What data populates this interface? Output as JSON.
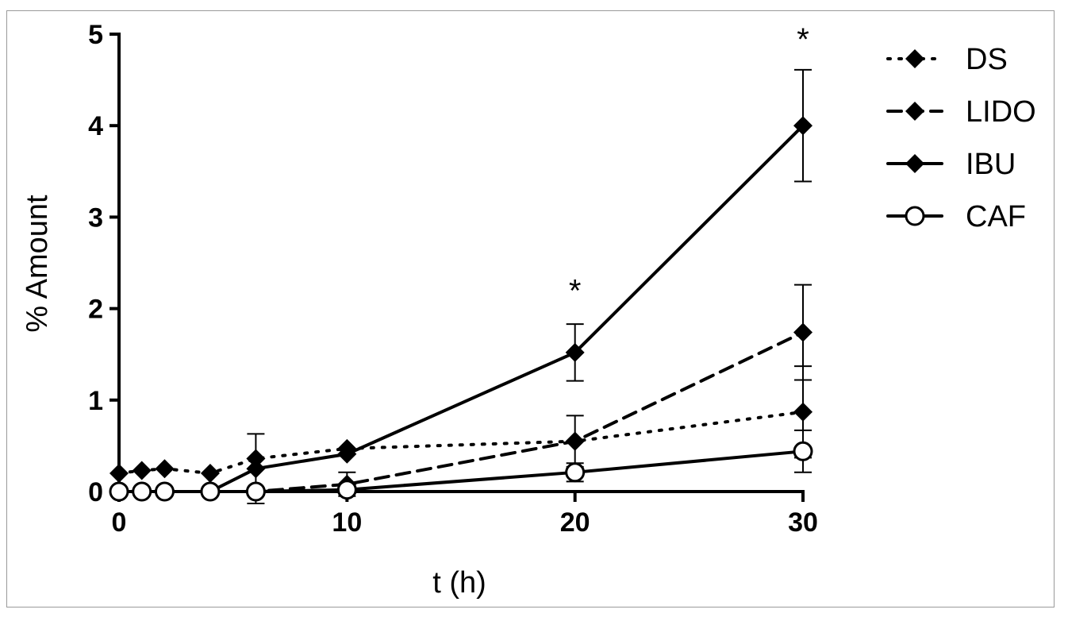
{
  "chart_data": {
    "type": "line",
    "xlabel": "t (h)",
    "ylabel": "% Amount",
    "xlim": [
      0,
      30
    ],
    "ylim": [
      0,
      5
    ],
    "xticks": [
      0,
      10,
      20,
      30
    ],
    "yticks": [
      0,
      1,
      2,
      3,
      4,
      5
    ],
    "grid": false,
    "legend": "top-right",
    "series": [
      {
        "name": "DS",
        "line": "dotted",
        "marker": "diamond-filled",
        "points": [
          {
            "x": 0,
            "y": 0.2
          },
          {
            "x": 1,
            "y": 0.23
          },
          {
            "x": 2,
            "y": 0.25
          },
          {
            "x": 4,
            "y": 0.2
          },
          {
            "x": 6,
            "y": 0.36
          },
          {
            "x": 10,
            "y": 0.47
          },
          {
            "x": 20,
            "y": 0.55
          },
          {
            "x": 30,
            "y": 0.87,
            "err": 0.5
          }
        ]
      },
      {
        "name": "LIDO",
        "line": "dashed",
        "marker": "diamond-filled",
        "points": [
          {
            "x": 0,
            "y": 0
          },
          {
            "x": 1,
            "y": 0
          },
          {
            "x": 2,
            "y": 0
          },
          {
            "x": 4,
            "y": 0
          },
          {
            "x": 6,
            "y": 0
          },
          {
            "x": 10,
            "y": 0.08,
            "err": 0.13
          },
          {
            "x": 20,
            "y": 0.55,
            "err": 0.28
          },
          {
            "x": 30,
            "y": 1.74,
            "err": 0.52
          }
        ]
      },
      {
        "name": "IBU",
        "line": "solid",
        "marker": "diamond-filled",
        "points": [
          {
            "x": 0,
            "y": 0
          },
          {
            "x": 1,
            "y": 0
          },
          {
            "x": 2,
            "y": 0
          },
          {
            "x": 4,
            "y": 0
          },
          {
            "x": 6,
            "y": 0.25,
            "err": 0.38
          },
          {
            "x": 10,
            "y": 0.41
          },
          {
            "x": 20,
            "y": 1.52,
            "err": 0.31
          },
          {
            "x": 30,
            "y": 4.0,
            "err": 0.61
          }
        ]
      },
      {
        "name": "CAF",
        "line": "solid",
        "marker": "circle-open",
        "points": [
          {
            "x": 0,
            "y": 0
          },
          {
            "x": 1,
            "y": 0
          },
          {
            "x": 2,
            "y": 0
          },
          {
            "x": 4,
            "y": 0
          },
          {
            "x": 6,
            "y": 0
          },
          {
            "x": 10,
            "y": 0.02
          },
          {
            "x": 20,
            "y": 0.21,
            "err": 0.1
          },
          {
            "x": 30,
            "y": 0.44,
            "err": 0.23
          }
        ]
      }
    ],
    "annotations": [
      {
        "text": "*",
        "x": 20,
        "y": 2.2
      },
      {
        "text": "*",
        "x": 30,
        "y": 4.95
      }
    ]
  }
}
